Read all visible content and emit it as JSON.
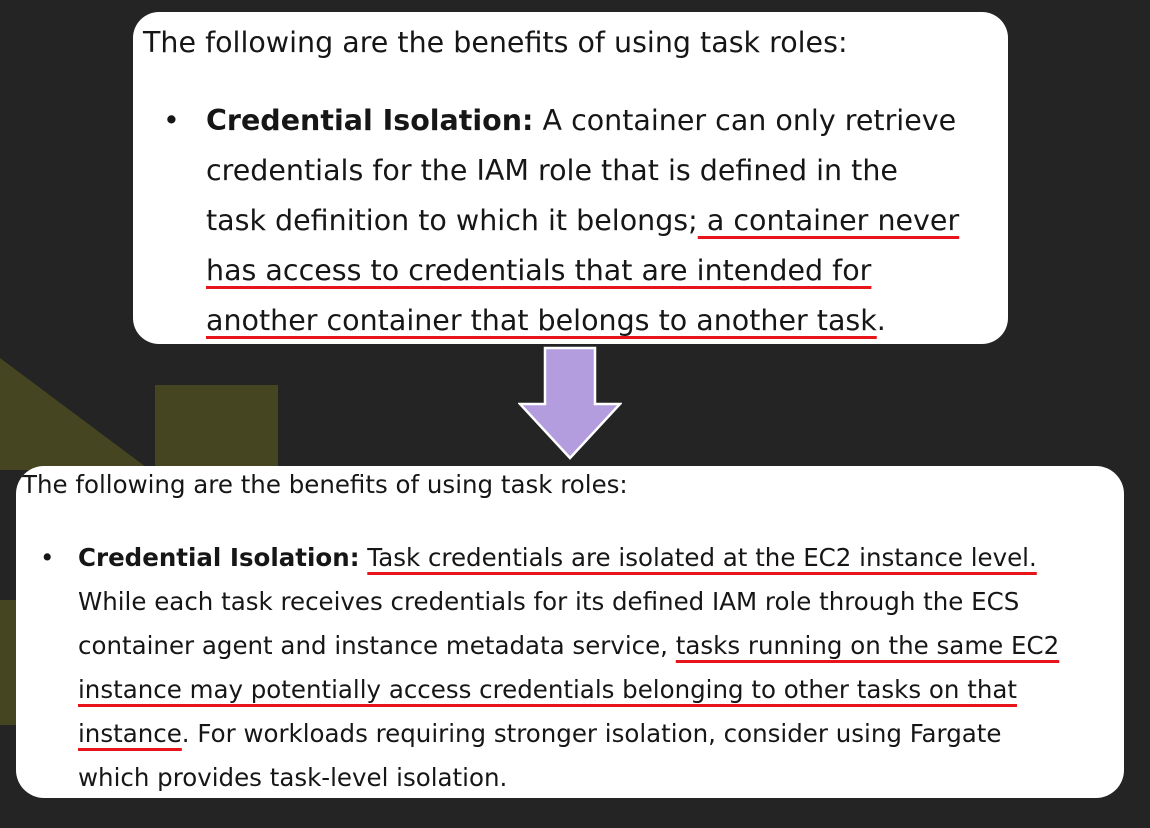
{
  "colors": {
    "background": "#242424",
    "card": "#ffffff",
    "text": "#161616",
    "underline": "#e8141c",
    "arrow_fill": "#b39ddf",
    "arrow_stroke": "#ffffff",
    "decor": "#454521"
  },
  "top_card": {
    "intro": "The following are the benefits of using task roles:",
    "bullet": {
      "term": "Credential Isolation:",
      "line1_rest": " A container can only retrieve",
      "line2": "credentials for the IAM role that is defined in the",
      "line3_plain": "task definition to which it belongs;",
      "line3_underlined": " a container never",
      "line4_underlined": "has access to credentials that are intended for",
      "line5_underlined": "another container that belongs to another task",
      "line5_tail": "."
    }
  },
  "arrow": {
    "icon": "down-arrow-icon"
  },
  "bottom_card": {
    "intro": "The following are the benefits of using task roles:",
    "bullet": {
      "term": "Credential Isolation:",
      "line1_underlined": "Task credentials are isolated at the EC2 instance level.",
      "line2": "While each task receives credentials for its defined IAM role through the ECS",
      "line3_plain": "container agent and instance metadata service,",
      "line3_underlined": "tasks running on the same EC2",
      "line4_underlined": "instance may potentially access credentials belonging to other tasks on that",
      "line5_underlined": "instance",
      "line5_tail": ". For workloads requiring stronger isolation, consider using Fargate",
      "line6": "which provides task-level isolation."
    }
  }
}
